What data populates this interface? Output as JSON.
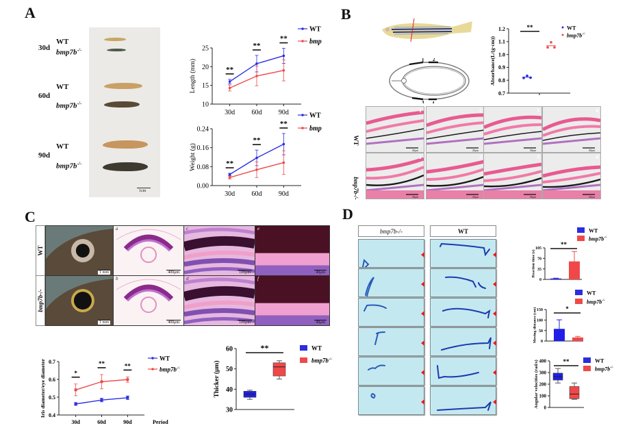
{
  "panels": {
    "A": {
      "letter": "A",
      "photo": {
        "rows": [
          {
            "age": "30d",
            "wt": "WT",
            "mut": "bmp7b",
            "sup": "-/-"
          },
          {
            "age": "60d",
            "wt": "WT",
            "mut": "bmp7b",
            "sup": "-/-"
          },
          {
            "age": "90d",
            "wt": "WT",
            "mut": "bmp7b",
            "sup": "-/-"
          }
        ],
        "scale_bar": "1cm"
      }
    },
    "B": {
      "letter": "B",
      "diagram_labels": [
        "1",
        "2",
        "3",
        "4"
      ],
      "histology": {
        "row_labels": [
          "WT",
          "bmp7b-/-"
        ],
        "tile_numbers": [
          "1",
          "2",
          "3",
          "4"
        ],
        "scale_bar": "40μm"
      }
    },
    "C": {
      "letter": "C",
      "row_labels": [
        "WT",
        "bmp7b-/-"
      ],
      "columns": [
        {
          "letters": [
            "",
            ""
          ],
          "scale": "1 mm"
        },
        {
          "letters": [
            "a",
            "b"
          ],
          "scale": "400μm"
        },
        {
          "letters": [
            "c",
            "d"
          ],
          "scale": "100μm"
        },
        {
          "letters": [
            "e",
            "f"
          ],
          "scale": "40μm"
        }
      ],
      "layer_labels_c": [
        "4",
        "7",
        "8",
        "9",
        "10"
      ],
      "layer_labels_e": [
        "1/2",
        "3",
        "4"
      ]
    },
    "D": {
      "letter": "D",
      "column_headers": [
        "bmp7b-/-",
        "WT"
      ],
      "tank_rows": 6
    }
  },
  "legend": {
    "wt": "WT",
    "mut": "bmp7b",
    "mut_sup": "-/-"
  },
  "colors": {
    "wt": "#2a2ee0",
    "mut": "#ee4a4a",
    "wt_fill": "#1f1fe8",
    "mut_fill": "#f04848"
  },
  "chart_data": [
    {
      "id": "length",
      "type": "line",
      "title": "",
      "xlabel": "",
      "ylabel": "Length (mm)",
      "categories": [
        "30d",
        "60d",
        "90d"
      ],
      "ylim": [
        10,
        25
      ],
      "yticks": [
        10,
        15,
        20,
        25
      ],
      "series": [
        {
          "name": "WT",
          "values": [
            16,
            20.8,
            22.9
          ],
          "err": [
            0.6,
            2.2,
            2.0
          ]
        },
        {
          "name": "bmp7b-/-",
          "values": [
            14.3,
            17.5,
            19
          ],
          "err": [
            0.8,
            2.6,
            2.8
          ]
        }
      ],
      "significance": [
        "**",
        "**",
        "**"
      ],
      "legend": "top-right"
    },
    {
      "id": "weight",
      "type": "line",
      "ylabel": "Weight (g)",
      "categories": [
        "30d",
        "60d",
        "90d"
      ],
      "ylim": [
        0,
        0.24
      ],
      "yticks": [
        "0.00",
        "0.08",
        "0.16",
        "0.24"
      ],
      "series": [
        {
          "name": "WT",
          "values": [
            0.047,
            0.117,
            0.175
          ],
          "err": [
            0.005,
            0.033,
            0.045
          ]
        },
        {
          "name": "bmp7b-/-",
          "values": [
            0.034,
            0.067,
            0.097
          ],
          "err": [
            0.006,
            0.033,
            0.05
          ]
        }
      ],
      "significance": [
        "**",
        "**",
        "**"
      ],
      "legend": "top-right"
    },
    {
      "id": "absorbance",
      "type": "scatter",
      "ylabel": "Absorbance(L/(g·cm))",
      "ylim": [
        0.7,
        1.2
      ],
      "yticks": [
        "0.7",
        "0.8",
        "0.9",
        "1.0",
        "1.1",
        "1.2"
      ],
      "series": [
        {
          "name": "WT",
          "values": [
            0.818,
            0.835,
            0.82
          ],
          "mean": 0.824
        },
        {
          "name": "bmp7b-/-",
          "values": [
            1.055,
            1.095,
            1.055
          ],
          "mean": 1.068
        }
      ],
      "significance": "**",
      "legend": "top-right"
    },
    {
      "id": "iris",
      "type": "line",
      "ylabel": "Iris diameter/eye diameter",
      "xlabel": "Period",
      "categories": [
        "30d",
        "60d",
        "90d"
      ],
      "ylim": [
        0.4,
        0.7
      ],
      "yticks": [
        "0.4",
        "0.5",
        "0.6",
        "0.7"
      ],
      "series": [
        {
          "name": "WT",
          "values": [
            0.462,
            0.484,
            0.497
          ],
          "err": [
            0.008,
            0.01,
            0.01
          ]
        },
        {
          "name": "bmp7b-/-",
          "values": [
            0.541,
            0.587,
            0.599
          ],
          "err": [
            0.033,
            0.04,
            0.015
          ]
        }
      ],
      "significance": [
        "*",
        "**",
        "**"
      ],
      "legend": "top-right"
    },
    {
      "id": "thicker",
      "type": "box",
      "ylabel": "Thicker (μm)",
      "ylim": [
        30,
        60
      ],
      "yticks": [
        30,
        40,
        50,
        60
      ],
      "series": [
        {
          "name": "WT",
          "min": 35,
          "q1": 36,
          "median": 37.5,
          "q3": 39,
          "max": 39.5
        },
        {
          "name": "bmp7b-/-",
          "min": 45,
          "q1": 46.5,
          "median": 51,
          "q3": 53,
          "max": 54
        }
      ],
      "significance": "**",
      "legend": "top-right"
    },
    {
      "id": "reaction",
      "type": "bar",
      "ylabel": "Reaction time (s)",
      "ylim": [
        0,
        105
      ],
      "yticks": [
        0,
        35,
        70,
        105
      ],
      "series": [
        {
          "name": "WT",
          "value": 3,
          "err": 1
        },
        {
          "name": "bmp7b-/-",
          "value": 60,
          "err": 33
        }
      ],
      "significance": "**",
      "legend": "top-right"
    },
    {
      "id": "distance",
      "type": "bar",
      "ylabel": "Moving distance (cm)",
      "ylim": [
        0,
        150
      ],
      "yticks": [
        0,
        50,
        100,
        150
      ],
      "series": [
        {
          "name": "WT",
          "value": 58,
          "err": 43
        },
        {
          "name": "bmp7b-/-",
          "value": 17,
          "err": 5
        }
      ],
      "significance": "*",
      "legend": "top-right"
    },
    {
      "id": "angular",
      "type": "box",
      "ylabel": "Angular velocities (rad/s)",
      "ylim": [
        0,
        400
      ],
      "yticks": [
        0,
        100,
        200,
        300,
        400
      ],
      "series": [
        {
          "name": "WT",
          "min": 210,
          "q1": 235,
          "median": 265,
          "q3": 295,
          "max": 335
        },
        {
          "name": "bmp7b-/-",
          "min": 70,
          "q1": 75,
          "median": 115,
          "q3": 180,
          "max": 210
        }
      ],
      "significance": "**",
      "legend": "top-right"
    }
  ]
}
